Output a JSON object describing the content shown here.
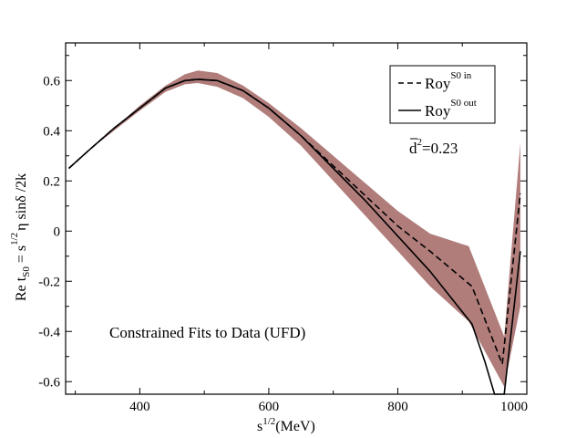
{
  "chart_data": {
    "type": "line",
    "title": "",
    "xlabel": "s",
    "xlabel_sup": "1/2",
    "xlabel_unit": "(MeV)",
    "ylabel_parts": {
      "prefix": "Re t",
      "sub": "S0",
      "eq": " = s",
      "sup": "1/2",
      "rest": "η sinδ /2k"
    },
    "xlim": [
      285,
      1000
    ],
    "ylim": [
      -0.65,
      0.75
    ],
    "xticks": [
      {
        "value": 400,
        "label": "400"
      },
      {
        "value": 600,
        "label": "600"
      },
      {
        "value": 800,
        "label": "800"
      },
      {
        "value": 1000,
        "label": "1000"
      }
    ],
    "yticks": [
      {
        "value": 0.6,
        "label": "0.6"
      },
      {
        "value": 0.4,
        "label": "0.4"
      },
      {
        "value": 0.2,
        "label": "0.2"
      },
      {
        "value": 0.0,
        "label": "0"
      },
      {
        "value": -0.2,
        "label": "-0.2"
      },
      {
        "value": -0.4,
        "label": "-0.4"
      },
      {
        "value": -0.6,
        "label": "-0.6"
      }
    ],
    "band": {
      "name": "uncertainty band",
      "color": "#b07d7b",
      "x": [
        290,
        320,
        360,
        400,
        440,
        470,
        490,
        520,
        560,
        600,
        650,
        700,
        750,
        800,
        850,
        910,
        965,
        990
      ],
      "upper": [
        0.25,
        0.32,
        0.41,
        0.5,
        0.58,
        0.625,
        0.64,
        0.63,
        0.58,
        0.51,
        0.41,
        0.3,
        0.19,
        0.08,
        -0.01,
        -0.06,
        -0.42,
        0.35
      ],
      "lower": [
        0.25,
        0.32,
        0.4,
        0.48,
        0.555,
        0.585,
        0.59,
        0.575,
        0.53,
        0.455,
        0.34,
        0.2,
        0.06,
        -0.08,
        -0.22,
        -0.36,
        -0.62,
        -0.3
      ]
    },
    "series": [
      {
        "name": "Roy S0 in",
        "style": "dashed",
        "color": "#000000",
        "x": [
          290,
          320,
          360,
          400,
          440,
          470,
          490,
          520,
          560,
          600,
          650,
          700,
          750,
          800,
          850,
          915,
          962,
          990
        ],
        "y": [
          0.25,
          0.32,
          0.41,
          0.49,
          0.57,
          0.6,
          0.605,
          0.6,
          0.56,
          0.49,
          0.38,
          0.26,
          0.14,
          0.02,
          -0.08,
          -0.22,
          -0.53,
          0.15
        ]
      },
      {
        "name": "Roy S0 out",
        "style": "solid",
        "color": "#000000",
        "x": [
          290,
          320,
          360,
          400,
          440,
          470,
          490,
          520,
          560,
          600,
          650,
          700,
          750,
          800,
          850,
          915,
          935,
          950,
          965,
          990
        ],
        "y": [
          0.25,
          0.32,
          0.41,
          0.49,
          0.57,
          0.6,
          0.605,
          0.6,
          0.56,
          0.49,
          0.38,
          0.25,
          0.12,
          -0.02,
          -0.16,
          -0.37,
          -0.52,
          -0.65,
          -0.65,
          -0.08
        ]
      }
    ],
    "legend": {
      "position": "top-right",
      "entries": [
        {
          "label": "Roy",
          "sup": "S0 in",
          "style": "dashed"
        },
        {
          "label": "Roy",
          "sup": "S0 out",
          "style": "solid"
        }
      ]
    },
    "annotations": {
      "d2_base": "d",
      "d2_sup": "2",
      "d2_value": "=0.23",
      "note": "Constrained Fits to Data (UFD)"
    }
  }
}
